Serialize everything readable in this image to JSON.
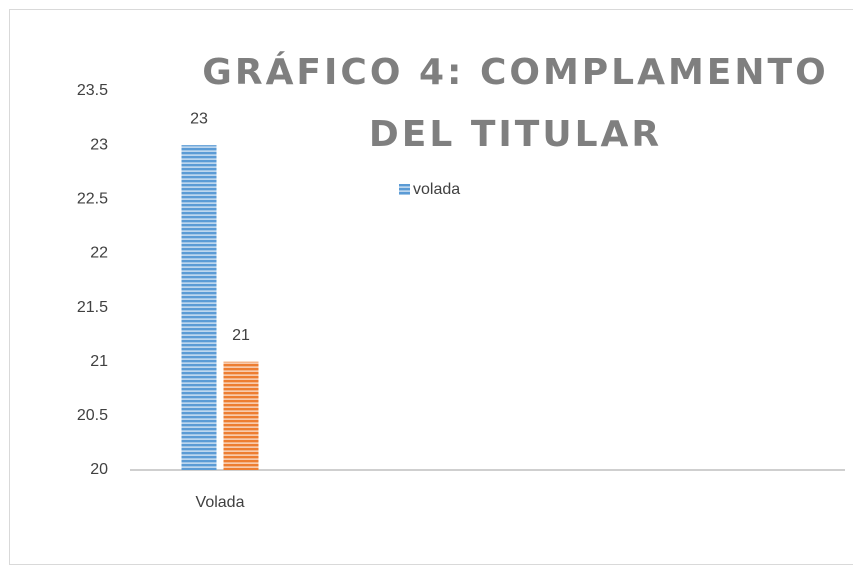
{
  "chart_data": {
    "type": "bar",
    "title": "GRÁFICO 4: COMPLAMENTO DEL TITULAR",
    "categories": [
      "Volada"
    ],
    "series": [
      {
        "name": "volada",
        "color": "#5b9bd5",
        "values": [
          23
        ]
      },
      {
        "color": "#ed7d31",
        "values": [
          21
        ]
      }
    ],
    "ylim": [
      20,
      23.5
    ],
    "yticks": [
      20,
      20.5,
      21,
      21.5,
      22,
      22.5,
      23,
      23.5
    ],
    "grid": false
  }
}
